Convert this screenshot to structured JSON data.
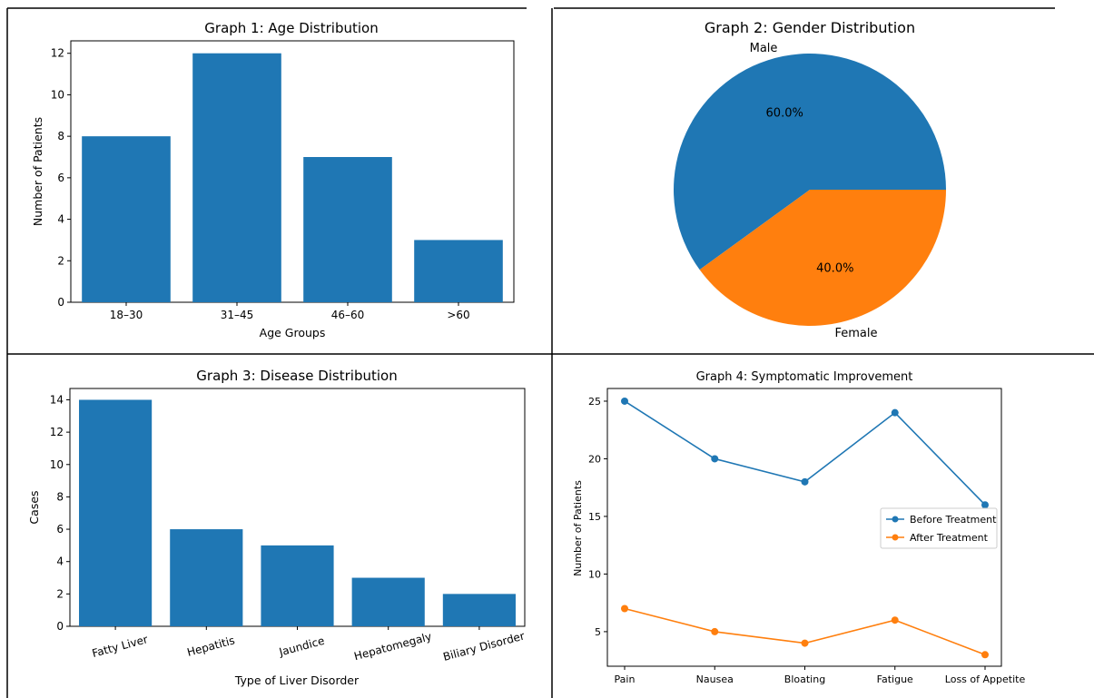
{
  "colors": {
    "series1": "#1f77b4",
    "series2": "#ff7f0e",
    "border": "#000000"
  },
  "chart_data": [
    {
      "type": "bar",
      "title": "Graph 1: Age Distribution",
      "categories": [
        "18–30",
        "31–45",
        "46–60",
        ">60"
      ],
      "values": [
        8,
        12,
        7,
        3
      ],
      "xlabel": "Age Groups",
      "ylabel": "Number of Patients",
      "ylim": [
        0,
        12.6
      ],
      "yticks": [
        0,
        2,
        4,
        6,
        8,
        10,
        12
      ],
      "grid": false
    },
    {
      "type": "pie",
      "title": "Graph 2: Gender Distribution",
      "labels": [
        "Male",
        "Female"
      ],
      "values": [
        60,
        40
      ],
      "pct_labels": [
        "60.0%",
        "40.0%"
      ]
    },
    {
      "type": "bar",
      "title": "Graph 3: Disease Distribution",
      "categories": [
        "Fatty Liver",
        "Hepatitis",
        "Jaundice",
        "Hepatomegaly",
        "Biliary Disorder"
      ],
      "values": [
        14,
        6,
        5,
        3,
        2
      ],
      "xlabel": "Type of Liver Disorder",
      "ylabel": "Cases",
      "ylim": [
        0,
        14.7
      ],
      "yticks": [
        0,
        2,
        4,
        6,
        8,
        10,
        12,
        14
      ],
      "grid": false
    },
    {
      "type": "line",
      "title": "Graph 4: Symptomatic Improvement",
      "categories": [
        "Pain",
        "Nausea",
        "Bloating",
        "Fatigue",
        "Loss of Appetite"
      ],
      "series": [
        {
          "name": "Before Treatment",
          "values": [
            25,
            20,
            18,
            24,
            16
          ]
        },
        {
          "name": "After Treatment",
          "values": [
            7,
            5,
            4,
            6,
            3
          ]
        }
      ],
      "xlabel": "",
      "ylabel": "Number of Patients",
      "ylim": [
        2,
        26.1
      ],
      "yticks": [
        5,
        10,
        15,
        20,
        25
      ],
      "legend": "center-right",
      "grid": false
    }
  ]
}
